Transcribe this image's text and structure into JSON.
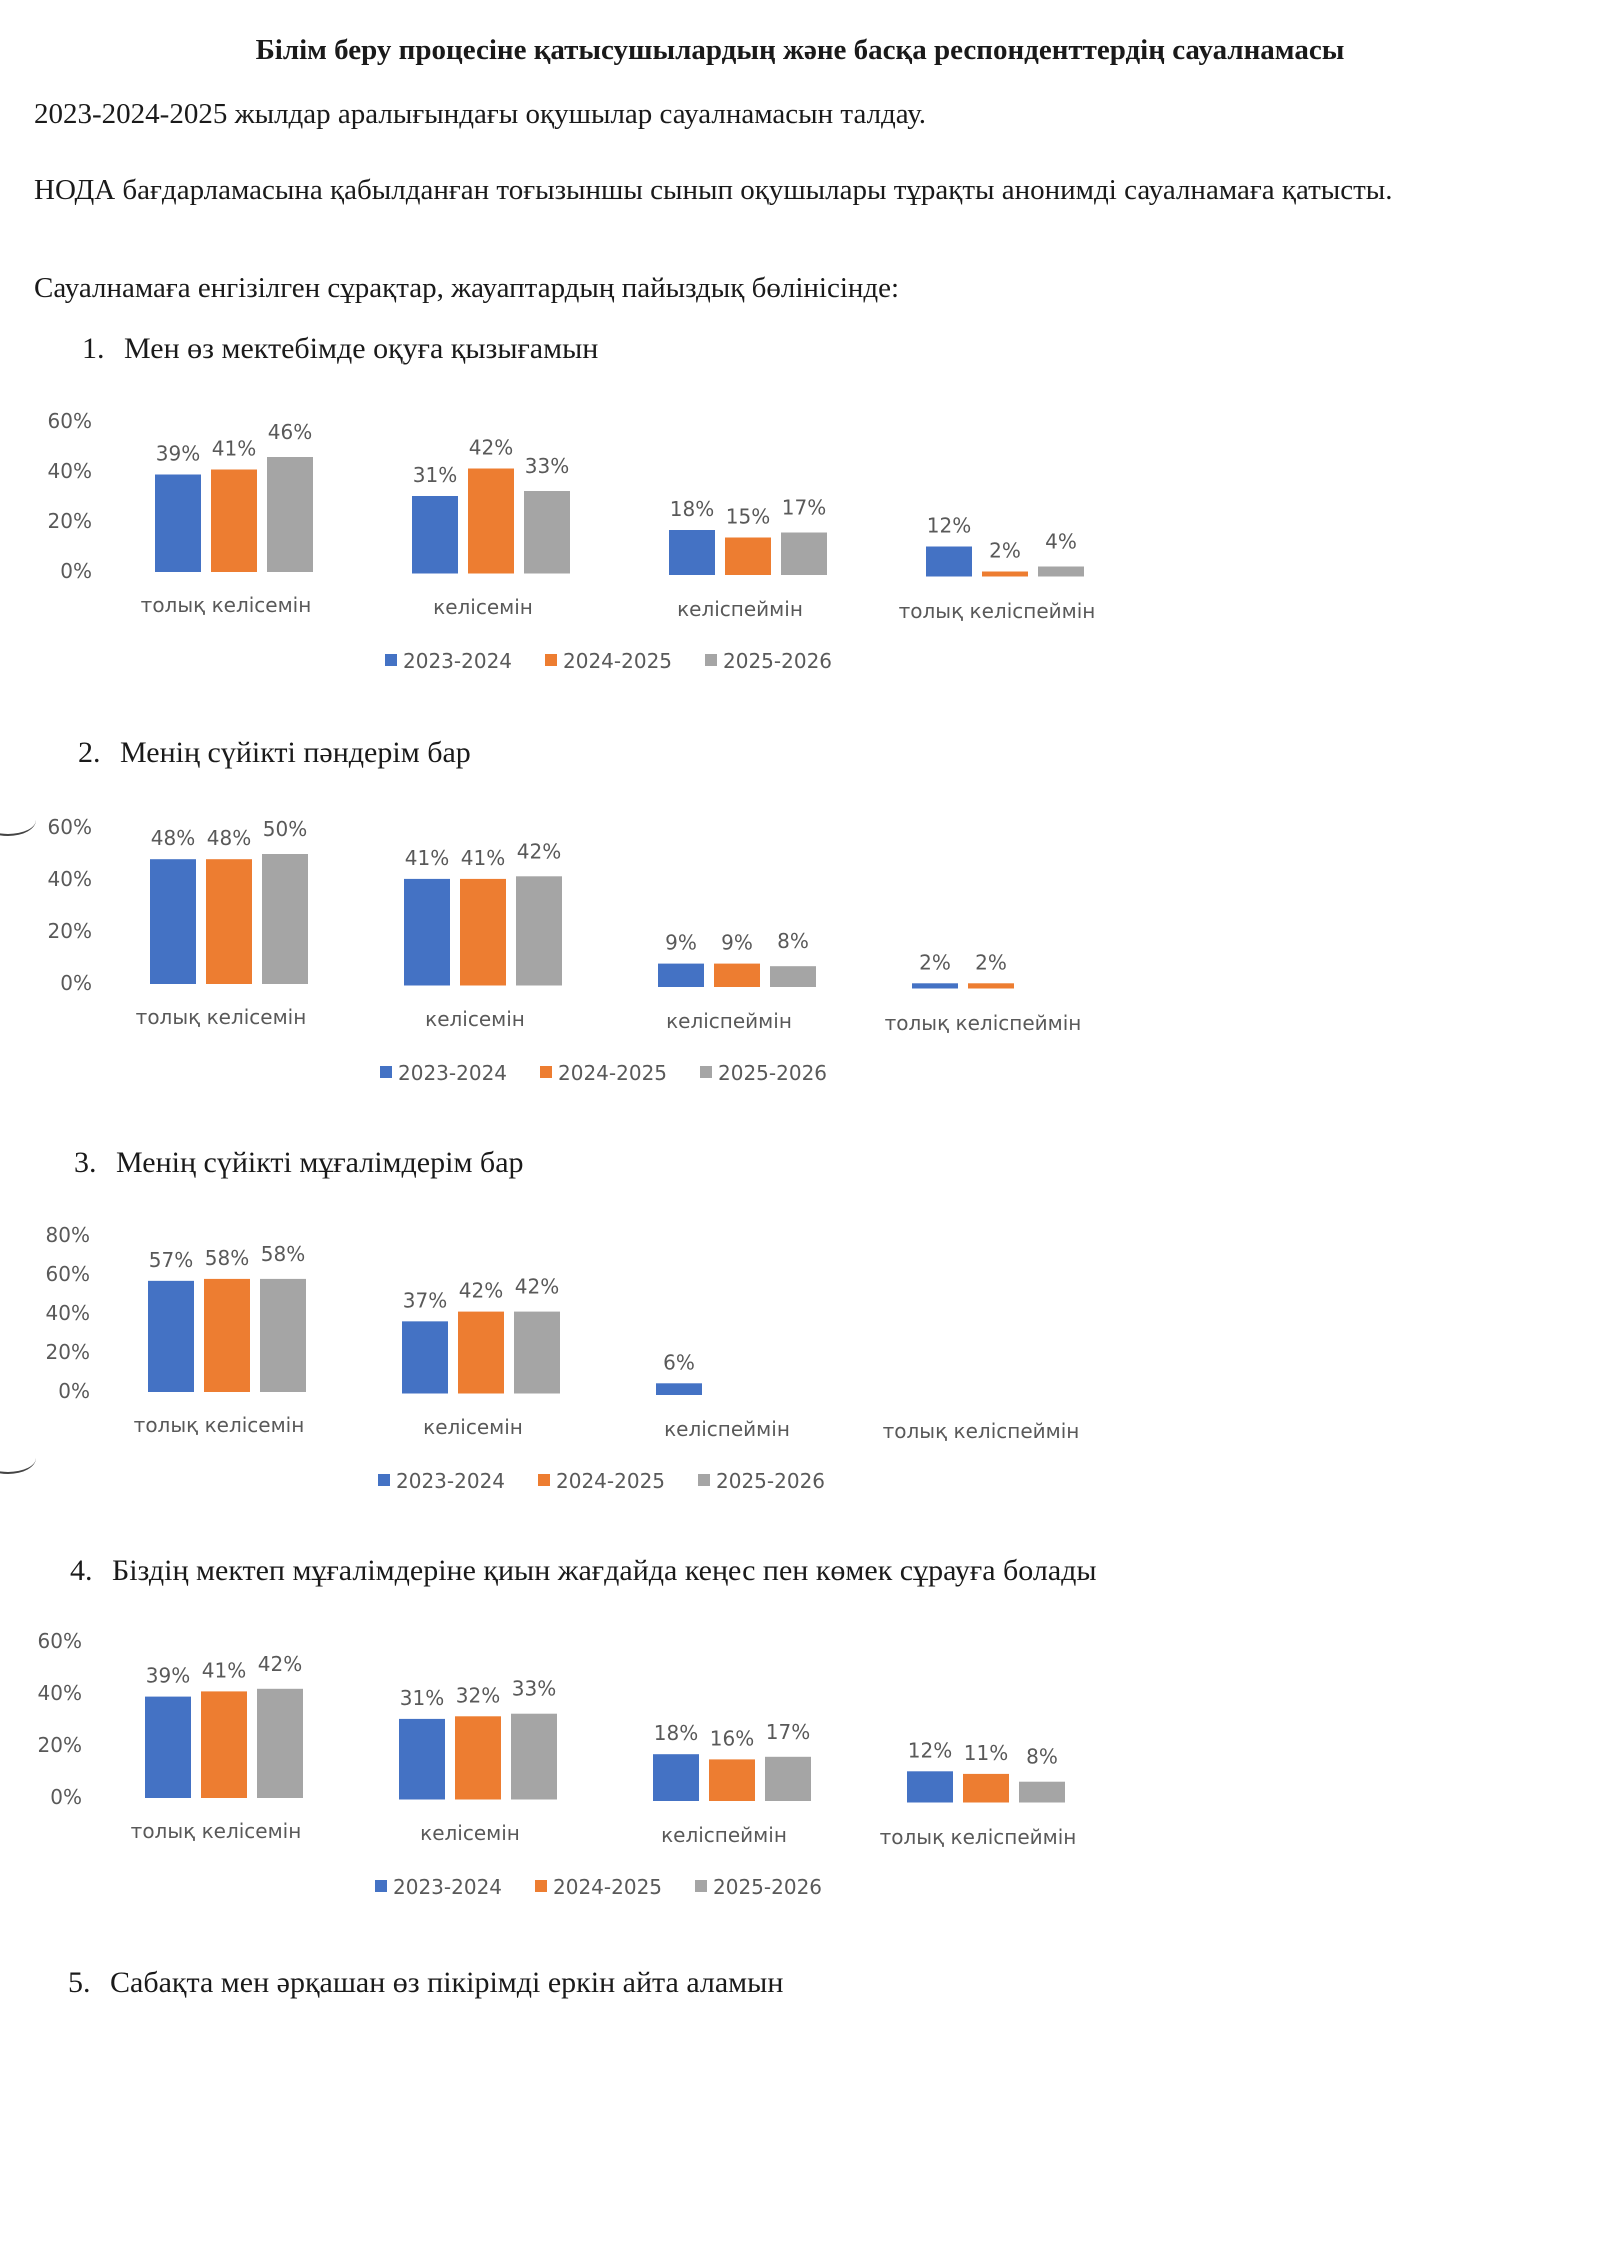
{
  "document": {
    "title": "Білім беру процесіне қатысушылардың және басқа респонденттердің сауалнамасы",
    "para1": "2023-2024-2025 жылдар аралығындағы оқушылар сауалнамасын талдау.",
    "para2": "НОДА бағдарламасына қабылданған тоғызыншы сынып оқушылары тұрақты анонимді сауалнамаға қатысты.",
    "para3": "Сауалнамаға енгізілген сұрақтар, жауаптардың пайыздық бөлінісінде:"
  },
  "questions": [
    {
      "num": "1.",
      "text": "Мен өз мектебімде оқуға қызығамын"
    },
    {
      "num": "2.",
      "text": "Менің сүйікті пәндерім бар"
    },
    {
      "num": "3.",
      "text": "Менің сүйікті мұғалімдерім бар"
    },
    {
      "num": "4.",
      "text": "Біздің мектеп мұғалімдеріне қиын жағдайда кеңес пен көмек сұрауға болады"
    },
    {
      "num": "5.",
      "text": "Сабақта мен әрқашан өз пікірімді еркін айта аламын"
    }
  ],
  "colors": {
    "series": [
      "#4472c4",
      "#ed7d31",
      "#a5a5a5"
    ]
  },
  "chart_data": [
    {
      "type": "bar",
      "title": "Мен өз мектебімде оқуға қызығамын",
      "categories": [
        "толық келісемін",
        "келісемін",
        "келіспеймін",
        "толық келіспеймін"
      ],
      "series": [
        {
          "name": "2023-2024",
          "values": [
            39,
            31,
            18,
            12
          ]
        },
        {
          "name": "2024-2025",
          "values": [
            41,
            42,
            15,
            2
          ]
        },
        {
          "name": "2025-2026",
          "values": [
            46,
            33,
            17,
            4
          ]
        }
      ],
      "ylim": [
        0,
        60
      ],
      "yticks": [
        "60%",
        "40%",
        "20%",
        "0%"
      ],
      "legend": "bottom"
    },
    {
      "type": "bar",
      "title": "Менің сүйікті пәндерім бар",
      "categories": [
        "толық келісемін",
        "келісемін",
        "келіспеймін",
        "толық келіспеймін"
      ],
      "series": [
        {
          "name": "2023-2024",
          "values": [
            48,
            41,
            9,
            2
          ]
        },
        {
          "name": "2024-2025",
          "values": [
            48,
            41,
            9,
            2
          ]
        },
        {
          "name": "2025-2026",
          "values": [
            50,
            42,
            8,
            null
          ]
        }
      ],
      "ylim": [
        0,
        60
      ],
      "yticks": [
        "60%",
        "40%",
        "20%",
        "0%"
      ],
      "legend": "bottom"
    },
    {
      "type": "bar",
      "title": "Менің сүйікті мұғалімдерім бар",
      "categories": [
        "толық келісемін",
        "келісемін",
        "келіспеймін",
        "толық келіспеймін"
      ],
      "series": [
        {
          "name": "2023-2024",
          "values": [
            57,
            37,
            6,
            null
          ]
        },
        {
          "name": "2024-2025",
          "values": [
            58,
            42,
            null,
            null
          ]
        },
        {
          "name": "2025-2026",
          "values": [
            58,
            42,
            null,
            null
          ]
        }
      ],
      "ylim": [
        0,
        80
      ],
      "yticks": [
        "80%",
        "60%",
        "40%",
        "20%",
        "0%"
      ],
      "legend": "bottom"
    },
    {
      "type": "bar",
      "title": "Біздің мектеп мұғалімдеріне қиын жағдайда кеңес пен көмек сұрауға болады",
      "categories": [
        "толық келісемін",
        "келісемін",
        "келіспеймін",
        "толық келіспеймін"
      ],
      "series": [
        {
          "name": "2023-2024",
          "values": [
            39,
            31,
            18,
            12
          ]
        },
        {
          "name": "2024-2025",
          "values": [
            41,
            32,
            16,
            11
          ]
        },
        {
          "name": "2025-2026",
          "values": [
            42,
            33,
            17,
            8
          ]
        }
      ],
      "ylim": [
        0,
        60
      ],
      "yticks": [
        "60%",
        "40%",
        "20%",
        "0%"
      ],
      "legend": "bottom"
    }
  ]
}
